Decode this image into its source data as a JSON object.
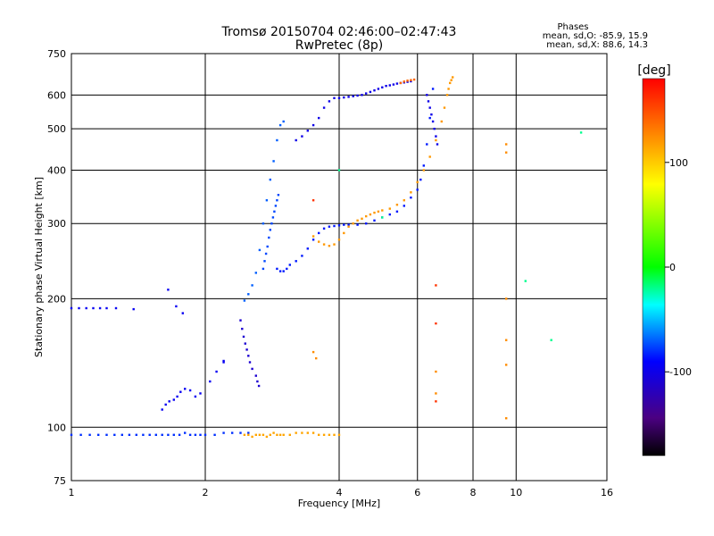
{
  "chart_data": {
    "type": "scatter",
    "title": "Tromsø 20150704 02:46:00–02:47:43",
    "subtitle": "RwPretec (8p)",
    "xlabel": "Frequency [MHz]",
    "ylabel": "Stationary phase Virtual Height [km]",
    "x_scale": "log",
    "y_scale": "log",
    "xlim": [
      1,
      16
    ],
    "ylim": [
      75,
      750
    ],
    "x_ticks": [
      1,
      2,
      4,
      6,
      8,
      10,
      16
    ],
    "x_tick_labels": [
      "1",
      "2",
      "4",
      "6",
      "8",
      "10",
      "16"
    ],
    "y_ticks": [
      75,
      100,
      200,
      300,
      400,
      500,
      600,
      750
    ],
    "y_tick_labels": [
      "75",
      "100",
      "200",
      "300",
      "400",
      "500",
      "600",
      "750"
    ],
    "grid": true,
    "stats": {
      "heading": "Phases",
      "line_o": "mean, sd,O: -85.9, 15.9",
      "line_x": "mean, sd,X: 88.6, 14.3"
    },
    "colorbar": {
      "label": "[deg]",
      "range": [
        -180,
        180
      ],
      "ticks": [
        100,
        0,
        -100
      ],
      "tick_labels": [
        "100",
        "0",
        "-100"
      ]
    },
    "series": [
      {
        "phase": -80,
        "x": [
          1.0,
          1.05,
          1.1,
          1.15,
          1.2,
          1.25,
          1.3,
          1.35,
          1.4,
          1.45,
          1.5,
          1.55,
          1.6,
          1.65,
          1.7,
          1.75,
          1.8,
          1.85,
          1.9,
          1.95,
          2.0,
          2.1,
          2.2,
          2.3,
          2.4,
          2.5
        ],
        "y": [
          96,
          96,
          96,
          96,
          96,
          96,
          96,
          96,
          96,
          96,
          96,
          96,
          96,
          96,
          96,
          96,
          97,
          96,
          96,
          96,
          96,
          96,
          97,
          97,
          97,
          97
        ]
      },
      {
        "phase": -95,
        "x": [
          1.0,
          1.04,
          1.08,
          1.12,
          1.16,
          1.2,
          1.26,
          1.38,
          1.65,
          1.72,
          1.78,
          2.2
        ],
        "y": [
          190,
          190,
          190,
          190,
          190,
          190,
          190,
          189,
          210,
          192,
          185,
          143
        ]
      },
      {
        "phase": -95,
        "x": [
          1.6,
          1.63,
          1.66,
          1.7,
          1.73,
          1.76,
          1.8,
          1.85,
          1.9,
          1.95,
          2.05,
          2.12,
          2.2
        ],
        "y": [
          110,
          113,
          115,
          116,
          118,
          121,
          123,
          122,
          118,
          120,
          128,
          135,
          142
        ]
      },
      {
        "phase": -110,
        "x": [
          2.4,
          2.42,
          2.44,
          2.46,
          2.48,
          2.5,
          2.52,
          2.55,
          2.6,
          2.62,
          2.64
        ],
        "y": [
          178,
          170,
          163,
          157,
          152,
          147,
          142,
          137,
          132,
          128,
          125
        ]
      },
      {
        "phase": -70,
        "x": [
          2.45,
          2.5,
          2.55,
          2.6,
          2.65,
          2.7,
          2.75,
          2.8,
          2.85,
          2.9,
          2.95,
          3.0
        ],
        "y": [
          198,
          205,
          215,
          230,
          260,
          300,
          340,
          380,
          420,
          470,
          510,
          520
        ]
      },
      {
        "phase": -75,
        "x": [
          2.7,
          2.72,
          2.74,
          2.76,
          2.78,
          2.8,
          2.82,
          2.84,
          2.86,
          2.88,
          2.9,
          2.92
        ],
        "y": [
          235,
          245,
          255,
          265,
          278,
          290,
          300,
          310,
          320,
          330,
          340,
          350
        ]
      },
      {
        "phase": -85,
        "x": [
          2.9,
          2.95,
          3.0,
          3.05,
          3.1,
          3.2,
          3.3,
          3.4,
          3.5,
          3.6,
          3.7,
          3.8,
          3.9,
          4.0,
          4.1,
          4.2,
          4.4,
          4.6,
          4.8,
          5.0,
          5.2,
          5.4,
          5.6,
          5.8,
          6.0,
          6.1,
          6.2,
          6.3,
          6.4,
          6.5
        ],
        "y": [
          235,
          232,
          232,
          235,
          240,
          245,
          252,
          262,
          275,
          285,
          292,
          295,
          296,
          297,
          298,
          298,
          298,
          300,
          305,
          310,
          315,
          320,
          330,
          345,
          360,
          380,
          410,
          460,
          530,
          620
        ]
      },
      {
        "phase": -100,
        "x": [
          3.2,
          3.3,
          3.4,
          3.5,
          3.6,
          3.7,
          3.8,
          3.9,
          4.0,
          4.1,
          4.2,
          4.3,
          4.4,
          4.5,
          4.6,
          4.7,
          4.8,
          4.9,
          5.0,
          5.1,
          5.2,
          5.3,
          5.4,
          5.5,
          5.6,
          5.7,
          5.8
        ],
        "y": [
          470,
          480,
          495,
          510,
          530,
          560,
          580,
          590,
          590,
          592,
          594,
          596,
          598,
          600,
          605,
          610,
          615,
          620,
          625,
          630,
          632,
          635,
          638,
          640,
          642,
          644,
          646
        ]
      },
      {
        "phase": -100,
        "x": [
          6.3,
          6.35,
          6.4,
          6.45,
          6.5,
          6.55,
          6.6,
          6.65
        ],
        "y": [
          600,
          580,
          560,
          540,
          520,
          500,
          480,
          460
        ]
      },
      {
        "phase": 115,
        "x": [
          2.45,
          2.5,
          2.55,
          2.6,
          2.65,
          2.7,
          2.75,
          2.8,
          2.85,
          2.9,
          2.95,
          3.0,
          3.1,
          3.2,
          3.3,
          3.4,
          3.5,
          3.6,
          3.7,
          3.8,
          3.9,
          4.0
        ],
        "y": [
          96,
          96,
          95,
          96,
          96,
          96,
          95,
          96,
          97,
          96,
          96,
          96,
          96,
          97,
          97,
          97,
          97,
          96,
          96,
          96,
          96,
          96
        ]
      },
      {
        "phase": 120,
        "x": [
          3.5,
          3.6,
          3.7,
          3.8,
          3.9,
          4.0,
          4.1,
          4.2,
          4.3,
          4.4,
          4.5,
          4.6,
          4.7,
          4.8,
          4.9,
          5.0,
          5.2,
          5.4,
          5.6,
          5.8,
          6.0,
          6.2,
          6.4,
          6.6,
          6.8,
          6.9,
          7.0,
          7.05,
          7.1,
          7.15,
          7.2
        ],
        "y": [
          280,
          272,
          268,
          266,
          268,
          275,
          285,
          295,
          300,
          305,
          308,
          312,
          315,
          318,
          320,
          322,
          325,
          332,
          340,
          355,
          375,
          400,
          430,
          470,
          520,
          560,
          600,
          620,
          640,
          650,
          660
        ]
      },
      {
        "phase": 140,
        "x": [
          5.5,
          5.6,
          5.7,
          5.8,
          5.9
        ],
        "y": [
          640,
          645,
          648,
          650,
          652
        ]
      },
      {
        "phase": 125,
        "x": [
          9.5,
          9.5,
          9.5,
          9.5,
          9.5,
          9.5,
          3.5,
          3.55,
          6.6,
          6.6
        ],
        "y": [
          460,
          440,
          200,
          160,
          140,
          105,
          150,
          145,
          135,
          120
        ]
      },
      {
        "phase": 160,
        "x": [
          6.6,
          6.6,
          6.6,
          3.5
        ],
        "y": [
          215,
          175,
          115,
          340
        ]
      },
      {
        "phase": -20,
        "x": [
          5.0,
          4.0,
          10.5,
          12.0,
          14.0
        ],
        "y": [
          310,
          400,
          220,
          160,
          490
        ]
      }
    ]
  }
}
